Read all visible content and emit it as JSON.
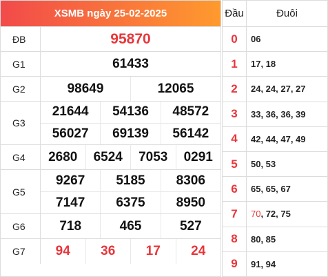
{
  "title": "XSMB ngày 25-02-2025",
  "prizes": [
    {
      "label": "ĐB",
      "lines": [
        [
          "95870"
        ]
      ]
    },
    {
      "label": "G1",
      "lines": [
        [
          "61433"
        ]
      ]
    },
    {
      "label": "G2",
      "lines": [
        [
          "98649",
          "12065"
        ]
      ]
    },
    {
      "label": "G3",
      "lines": [
        [
          "21644",
          "54136",
          "48572"
        ],
        [
          "56027",
          "69139",
          "56142"
        ]
      ]
    },
    {
      "label": "G4",
      "lines": [
        [
          "2680",
          "6524",
          "7053",
          "0291"
        ]
      ]
    },
    {
      "label": "G5",
      "lines": [
        [
          "9267",
          "5185",
          "8306"
        ],
        [
          "7147",
          "6375",
          "8950"
        ]
      ]
    },
    {
      "label": "G6",
      "lines": [
        [
          "718",
          "465",
          "527"
        ]
      ]
    },
    {
      "label": "G7",
      "lines": [
        [
          "94",
          "36",
          "17",
          "24"
        ]
      ]
    }
  ],
  "tail_table": {
    "head_label": "Đầu",
    "tail_label": "Đuôi",
    "rows": [
      {
        "head": "0",
        "highlight": "",
        "rest": "06"
      },
      {
        "head": "1",
        "highlight": "",
        "rest": "17, 18"
      },
      {
        "head": "2",
        "highlight": "",
        "rest": "24, 24, 27, 27"
      },
      {
        "head": "3",
        "highlight": "",
        "rest": "33, 36, 36, 39"
      },
      {
        "head": "4",
        "highlight": "",
        "rest": "42, 44, 47, 49"
      },
      {
        "head": "5",
        "highlight": "",
        "rest": "50, 53"
      },
      {
        "head": "6",
        "highlight": "",
        "rest": "65, 65, 67"
      },
      {
        "head": "7",
        "highlight": "70",
        "rest": ", 72, 75"
      },
      {
        "head": "8",
        "highlight": "",
        "rest": "80, 85"
      },
      {
        "head": "9",
        "highlight": "",
        "rest": "91, 94"
      }
    ]
  },
  "colors": {
    "accent_red": "#e8363b",
    "header_start": "#f24a4a",
    "header_end": "#ff9a2e"
  }
}
